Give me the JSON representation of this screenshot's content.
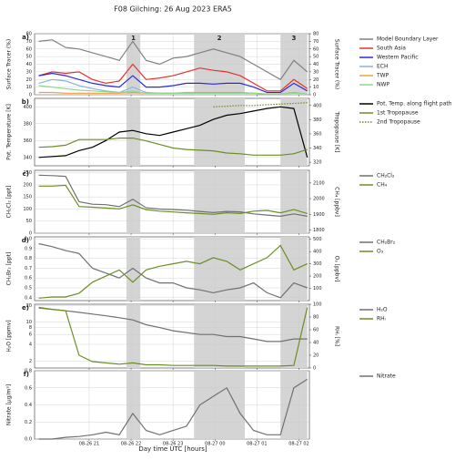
{
  "chart_data": [
    {
      "type": "line",
      "title": "F08 Gilching:  26 Aug 2023    ERA5",
      "label": "a)",
      "x": [
        19.8,
        20.12,
        20.44,
        20.76,
        21.08,
        21.4,
        21.72,
        22.04,
        22.36,
        22.68,
        23.0,
        23.32,
        23.64,
        23.96,
        24.28,
        24.6,
        24.92,
        25.24,
        25.56,
        25.88,
        26.2
      ],
      "xlim": [
        19.7,
        26.25
      ],
      "xticks": [
        21,
        22,
        23,
        24,
        25,
        26
      ],
      "spans": [
        [
          21.89,
          22.22
        ],
        [
          23.5,
          24.71
        ],
        [
          25.56,
          26.2
        ]
      ],
      "span_labels": [
        "1",
        "2",
        "3"
      ],
      "ylim": [
        0,
        80
      ],
      "yticks": [
        0,
        10,
        20,
        30,
        40,
        50,
        60,
        70,
        80
      ],
      "ylabel": "Surface Tracer (%)",
      "y2lim": [
        0,
        80
      ],
      "y2ticks": [
        0,
        10,
        20,
        30,
        40,
        50,
        60,
        70,
        80
      ],
      "y2label": "Surface Tracer (%)",
      "grid": true,
      "series": [
        {
          "name": "Model Boundary Layer",
          "color": "#808080",
          "values": [
            70,
            72,
            62,
            60,
            55,
            50,
            45,
            70,
            45,
            40,
            48,
            50,
            55,
            60,
            55,
            50,
            40,
            30,
            20,
            45,
            30
          ]
        },
        {
          "name": "South Asia",
          "color": "#e8302a",
          "values": [
            25,
            30,
            28,
            30,
            20,
            15,
            18,
            40,
            20,
            22,
            25,
            30,
            35,
            32,
            30,
            25,
            15,
            5,
            5,
            20,
            8
          ]
        },
        {
          "name": "Western Pacific",
          "color": "#2a2ad8",
          "values": [
            25,
            28,
            25,
            20,
            15,
            12,
            10,
            25,
            10,
            10,
            12,
            15,
            15,
            14,
            15,
            15,
            10,
            3,
            3,
            15,
            5
          ]
        },
        {
          "name": "ECH",
          "color": "#8ab4e0",
          "values": [
            15,
            20,
            18,
            12,
            8,
            5,
            3,
            10,
            3,
            2,
            2,
            2,
            2,
            2,
            2,
            2,
            2,
            1,
            1,
            3,
            1
          ]
        },
        {
          "name": "TWP",
          "color": "#f0a040",
          "values": [
            3,
            3,
            2,
            2,
            2,
            2,
            2,
            3,
            2,
            2,
            2,
            3,
            3,
            3,
            3,
            3,
            2,
            1,
            1,
            2,
            1
          ]
        },
        {
          "name": "NWP",
          "color": "#90d890",
          "values": [
            12,
            10,
            8,
            6,
            5,
            4,
            3,
            5,
            2,
            2,
            2,
            2,
            2,
            2,
            2,
            2,
            2,
            1,
            1,
            2,
            1
          ]
        }
      ]
    },
    {
      "type": "line",
      "label": "b)",
      "x": [
        19.8,
        20.12,
        20.44,
        20.76,
        21.08,
        21.4,
        21.72,
        22.04,
        22.36,
        22.68,
        23.0,
        23.32,
        23.64,
        23.96,
        24.28,
        24.6,
        24.92,
        25.24,
        25.56,
        25.88,
        26.2
      ],
      "xlim": [
        19.7,
        26.25
      ],
      "xticks": [
        21,
        22,
        23,
        24,
        25,
        26
      ],
      "spans": [
        [
          21.89,
          22.22
        ],
        [
          23.5,
          24.71
        ],
        [
          25.56,
          26.2
        ]
      ],
      "ylim": [
        330,
        410
      ],
      "yticks": [
        340,
        360,
        380,
        400
      ],
      "ylabel": "Pot. Temperature [K]",
      "y2lim": [
        315,
        410
      ],
      "y2ticks": [
        320,
        340,
        360,
        380,
        400
      ],
      "y2label": "Tropopause [K]",
      "grid": true,
      "series": [
        {
          "name": "Pot. Temp. along flight path",
          "color": "#000000",
          "values": [
            340,
            341,
            342,
            348,
            352,
            360,
            370,
            372,
            368,
            366,
            370,
            374,
            378,
            385,
            390,
            392,
            395,
            398,
            400,
            398,
            340
          ]
        },
        {
          "name": "1st Tropopause",
          "color": "#6b8e23",
          "axis": "y2",
          "values": [
            341,
            342,
            344,
            352,
            352,
            352,
            354,
            354,
            350,
            345,
            340,
            338,
            337,
            336,
            333,
            332,
            330,
            330,
            330,
            332,
            338
          ]
        },
        {
          "name": "2nd Tropopause",
          "color": "#6b8e23",
          "axis": "y2",
          "linestyle": "dotted",
          "values": [
            null,
            null,
            null,
            null,
            null,
            null,
            null,
            null,
            null,
            null,
            null,
            null,
            null,
            398,
            399,
            400,
            400,
            401,
            402,
            403,
            404
          ]
        }
      ]
    },
    {
      "type": "line",
      "label": "c)",
      "x": [
        19.8,
        20.12,
        20.44,
        20.76,
        21.08,
        21.4,
        21.72,
        22.04,
        22.36,
        22.68,
        23.0,
        23.32,
        23.64,
        23.96,
        24.28,
        24.6,
        24.92,
        25.24,
        25.56,
        25.88,
        26.2
      ],
      "xlim": [
        19.7,
        26.25
      ],
      "xticks": [
        21,
        22,
        23,
        24,
        25,
        26
      ],
      "spans": [
        [
          21.89,
          22.22
        ],
        [
          23.5,
          24.71
        ],
        [
          25.56,
          26.2
        ]
      ],
      "ylim": [
        0,
        260
      ],
      "yticks": [
        0,
        50,
        100,
        150,
        200,
        250
      ],
      "ylabel": "CH₂Cl₂ [ppt]",
      "y2lim": [
        1780,
        2180
      ],
      "y2ticks": [
        1800,
        1900,
        2000,
        2100
      ],
      "y2label": "CH₄ [ppbv]",
      "grid": true,
      "series": [
        {
          "name": "CH₂Cl₂",
          "color": "#707070",
          "values": [
            240,
            238,
            235,
            130,
            120,
            118,
            110,
            140,
            105,
            100,
            98,
            95,
            90,
            85,
            90,
            88,
            80,
            75,
            70,
            80,
            70
          ]
        },
        {
          "name": "CH₄",
          "color": "#6b8e23",
          "axis": "y2",
          "values": [
            2080,
            2080,
            2085,
            1950,
            1945,
            1940,
            1935,
            1960,
            1930,
            1920,
            1915,
            1910,
            1905,
            1900,
            1910,
            1905,
            1920,
            1925,
            1910,
            1930,
            1905
          ]
        }
      ]
    },
    {
      "type": "line",
      "label": "d)",
      "x": [
        19.8,
        20.12,
        20.44,
        20.76,
        21.08,
        21.4,
        21.72,
        22.04,
        22.36,
        22.68,
        23.0,
        23.32,
        23.64,
        23.96,
        24.28,
        24.6,
        24.92,
        25.24,
        25.56,
        25.88,
        26.2
      ],
      "xlim": [
        19.7,
        26.25
      ],
      "xticks": [
        21,
        22,
        23,
        24,
        25,
        26
      ],
      "spans": [
        [
          21.89,
          22.22
        ],
        [
          23.5,
          24.71
        ],
        [
          25.56,
          26.2
        ]
      ],
      "ylim": [
        0.37,
        1.02
      ],
      "yticks": [
        0.4,
        0.5,
        0.6,
        0.7,
        0.8,
        0.9,
        {
          "value": 1,
          "label": "1.0"
        }
      ],
      "ylabel": "CH₂Br₂ [ppt]",
      "y2lim": [
        0,
        520
      ],
      "y2ticks": [
        100,
        200,
        300,
        400,
        500
      ],
      "y2label": "O₃ [ppbv]",
      "grid": true,
      "series": [
        {
          "name": "CH₂Br₂",
          "color": "#707070",
          "values": [
            0.95,
            0.92,
            0.88,
            0.85,
            0.7,
            0.65,
            0.6,
            0.7,
            0.6,
            0.55,
            0.55,
            0.5,
            0.48,
            0.45,
            0.48,
            0.5,
            0.55,
            0.45,
            0.4,
            0.55,
            0.5
          ]
        },
        {
          "name": "O₃",
          "color": "#6b8e23",
          "axis": "y2",
          "values": [
            20,
            30,
            30,
            60,
            150,
            200,
            250,
            150,
            250,
            280,
            300,
            320,
            300,
            350,
            320,
            250,
            300,
            350,
            450,
            250,
            300
          ]
        }
      ]
    },
    {
      "type": "line",
      "label": "e)",
      "x": [
        19.8,
        20.12,
        20.44,
        20.76,
        21.08,
        21.4,
        21.72,
        22.04,
        22.36,
        22.68,
        23.0,
        23.32,
        23.64,
        23.96,
        24.28,
        24.6,
        24.92,
        25.24,
        25.56,
        25.88,
        26.2
      ],
      "xlim": [
        19.7,
        26.25
      ],
      "xticks": [
        21,
        22,
        23,
        24,
        25,
        26
      ],
      "spans": [
        [
          21.89,
          22.22
        ],
        [
          23.5,
          24.71
        ],
        [
          25.56,
          26.2
        ]
      ],
      "log": true,
      "ylim": [
        1.5,
        21
      ],
      "yticks": [
        2,
        4,
        6,
        8,
        10,
        20
      ],
      "ylabel": "H₂O [ppmv]",
      "y2lim": [
        0,
        100
      ],
      "y2ticks": [
        0,
        20,
        40,
        60,
        80,
        100
      ],
      "y2label": "RHᵢ [%]",
      "grid": true,
      "series": [
        {
          "name": "H₂O",
          "color": "#707070",
          "values": [
            18,
            17,
            16,
            15,
            14,
            13,
            12,
            11,
            9,
            8,
            7,
            6.5,
            6,
            6,
            5.5,
            5.5,
            5,
            4.5,
            4.5,
            5,
            5
          ]
        },
        {
          "name": "RHᵢ",
          "color": "#6b8e23",
          "axis": "y2",
          "values": [
            95,
            92,
            90,
            20,
            10,
            8,
            6,
            8,
            5,
            5,
            4,
            4,
            4,
            4,
            3,
            3,
            3,
            3,
            3,
            4,
            95
          ]
        }
      ]
    },
    {
      "type": "line",
      "label": "f)",
      "xlabel": "Day time UTC  [hours]",
      "x": [
        19.8,
        20.12,
        20.44,
        20.76,
        21.08,
        21.4,
        21.72,
        22.04,
        22.36,
        22.68,
        23.0,
        23.32,
        23.64,
        23.96,
        24.28,
        24.6,
        24.92,
        25.24,
        25.56,
        25.88,
        26.2
      ],
      "xlim": [
        19.7,
        26.25
      ],
      "xticks": [
        {
          "value": 21,
          "label": "08-26 21"
        },
        {
          "value": 22,
          "label": "08-26 22"
        },
        {
          "value": 23,
          "label": "08-26 23"
        },
        {
          "value": 24,
          "label": "08-27 00"
        },
        {
          "value": 25,
          "label": "08-27 01"
        },
        {
          "value": 26,
          "label": "08-27 02"
        }
      ],
      "spans": [
        [
          21.89,
          22.22
        ],
        [
          23.5,
          24.71
        ],
        [
          25.56,
          26.2
        ]
      ],
      "ylim": [
        0,
        0.8
      ],
      "yticks": [
        {
          "value": 0,
          "label": "0.0"
        },
        0.2,
        0.4,
        0.6,
        0.8
      ],
      "ylabel": "Nitrate [µg/m³]",
      "grid": true,
      "series": [
        {
          "name": "Nitrate",
          "color": "#707070",
          "values": [
            0,
            0,
            0.02,
            0.03,
            0.05,
            0.08,
            0.05,
            0.3,
            0.1,
            0.05,
            0.1,
            0.15,
            0.4,
            0.5,
            0.6,
            0.3,
            0.1,
            0.05,
            0.05,
            0.6,
            0.7
          ]
        }
      ]
    }
  ]
}
